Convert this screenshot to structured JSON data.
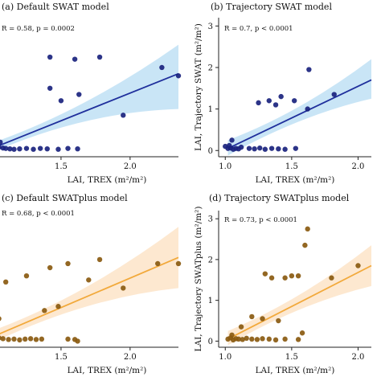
{
  "chart_data": [
    {
      "id": "a",
      "type": "scatter",
      "title": "(a) Default SWAT model",
      "stat": "R = 0.58, p = 0.0002",
      "xlabel": "LAI, TREX (m²/m²)",
      "ylabel": "",
      "xlim": [
        1.0,
        2.35
      ],
      "ylim": [
        -0.15,
        3.2
      ],
      "xticks": [
        1.5,
        2.0
      ],
      "yticks": [],
      "colors": {
        "point": "#1a237e",
        "line": "#1f2f9c",
        "band": "#bfe0f5"
      },
      "fit": {
        "x": [
          1.0,
          2.35
        ],
        "y": [
          0.05,
          1.85
        ],
        "lower": [
          -0.05,
          1.0
        ],
        "upper": [
          0.18,
          2.55
        ]
      },
      "x": [
        1.02,
        1.05,
        1.08,
        1.1,
        1.13,
        1.16,
        1.2,
        1.25,
        1.3,
        1.35,
        1.4,
        1.48,
        1.55,
        1.62,
        1.06,
        1.42,
        1.6,
        1.42,
        1.63,
        1.5,
        1.78,
        1.95,
        2.23,
        2.35,
        1.0
      ],
      "y": [
        0.05,
        0.08,
        0.06,
        0.05,
        0.04,
        0.03,
        0.04,
        0.05,
        0.03,
        0.05,
        0.04,
        0.03,
        0.05,
        0.04,
        0.2,
        2.25,
        2.2,
        1.5,
        1.35,
        1.2,
        2.25,
        0.85,
        2.0,
        1.8,
        0.1
      ]
    },
    {
      "id": "b",
      "type": "scatter",
      "title": "(b) Trajectory SWAT model",
      "stat": "R = 0.7, p < 0.0001",
      "xlabel": "LAI, TREX (m²/m²)",
      "ylabel": "LAI, Trajectory SWAT (m²/m²)",
      "xlim": [
        0.95,
        2.1
      ],
      "ylim": [
        -0.15,
        3.2
      ],
      "xticks": [
        1.0,
        1.5,
        2.0
      ],
      "yticks": [
        0,
        1,
        2,
        3
      ],
      "colors": {
        "point": "#1a237e",
        "line": "#1f2f9c",
        "band": "#bfe0f5"
      },
      "fit": {
        "x": [
          1.02,
          2.1
        ],
        "y": [
          0.05,
          1.7
        ],
        "lower": [
          -0.12,
          1.25
        ],
        "upper": [
          0.25,
          2.2
        ]
      },
      "x": [
        1.02,
        1.04,
        1.06,
        1.08,
        1.1,
        1.12,
        1.18,
        1.22,
        1.26,
        1.3,
        1.35,
        1.4,
        1.45,
        1.53,
        1.05,
        1.25,
        1.33,
        1.38,
        1.42,
        1.52,
        1.63,
        1.62,
        1.82,
        1.0,
        1.03
      ],
      "y": [
        0.05,
        0.06,
        0.03,
        0.05,
        0.04,
        0.08,
        0.05,
        0.04,
        0.06,
        0.03,
        0.05,
        0.04,
        0.03,
        0.05,
        0.25,
        1.15,
        1.2,
        1.1,
        1.3,
        1.2,
        1.95,
        1.0,
        1.35,
        0.1,
        0.12
      ]
    },
    {
      "id": "c",
      "type": "scatter",
      "title": "(c) Default SWATplus model",
      "stat": "R = 0.68, p < 0.0001",
      "xlabel": "LAI, TREX (m²/m²)",
      "ylabel": "",
      "xlim": [
        1.0,
        2.35
      ],
      "ylim": [
        -0.15,
        3.2
      ],
      "xticks": [
        1.5,
        2.0
      ],
      "yticks": [],
      "colors": {
        "point": "#8a5a10",
        "line": "#f2a93b",
        "band": "#fde4c8"
      },
      "fit": {
        "x": [
          1.0,
          2.35
        ],
        "y": [
          0.1,
          2.05
        ],
        "lower": [
          -0.05,
          1.3
        ],
        "upper": [
          0.25,
          2.8
        ]
      },
      "x": [
        1.02,
        1.05,
        1.08,
        1.12,
        1.16,
        1.2,
        1.24,
        1.28,
        1.32,
        1.36,
        1.55,
        1.6,
        1.05,
        1.1,
        1.38,
        1.48,
        1.55,
        1.78,
        1.7,
        1.62,
        1.95,
        2.2,
        2.35,
        1.42,
        1.25
      ],
      "y": [
        0.05,
        0.08,
        0.06,
        0.04,
        0.05,
        0.03,
        0.05,
        0.06,
        0.04,
        0.05,
        0.05,
        0.04,
        0.55,
        1.45,
        0.75,
        0.85,
        1.9,
        2.0,
        1.5,
        0.0,
        1.3,
        1.9,
        1.9,
        1.8,
        1.6
      ]
    },
    {
      "id": "d",
      "type": "scatter",
      "title": "(d) Trajectory SWATplus model",
      "stat": "R = 0.73, p < 0.0001",
      "xlabel": "LAI, TREX (m²/m²)",
      "ylabel": "LAI, Trajectory SWATplus (m²/m²)",
      "xlim": [
        0.95,
        2.1
      ],
      "ylim": [
        -0.15,
        3.2
      ],
      "xticks": [
        1.0,
        1.5,
        2.0
      ],
      "yticks": [
        0,
        1,
        2,
        3
      ],
      "colors": {
        "point": "#8a5a10",
        "line": "#f2a93b",
        "band": "#fde4c8"
      },
      "fit": {
        "x": [
          1.02,
          2.1
        ],
        "y": [
          0.05,
          1.85
        ],
        "lower": [
          -0.1,
          1.35
        ],
        "upper": [
          0.25,
          2.35
        ]
      },
      "x": [
        1.02,
        1.04,
        1.06,
        1.08,
        1.1,
        1.13,
        1.16,
        1.2,
        1.24,
        1.28,
        1.33,
        1.38,
        1.45,
        1.55,
        1.05,
        1.12,
        1.2,
        1.28,
        1.3,
        1.35,
        1.4,
        1.45,
        1.5,
        1.55,
        1.58,
        1.6,
        1.62,
        1.8,
        2.0
      ],
      "y": [
        0.05,
        0.08,
        0.03,
        0.06,
        0.05,
        0.04,
        0.07,
        0.05,
        0.04,
        0.06,
        0.05,
        0.03,
        0.05,
        0.04,
        0.15,
        0.35,
        0.6,
        0.55,
        1.65,
        1.55,
        0.5,
        1.55,
        1.6,
        1.6,
        0.2,
        2.35,
        2.75,
        1.55,
        1.85
      ]
    }
  ]
}
